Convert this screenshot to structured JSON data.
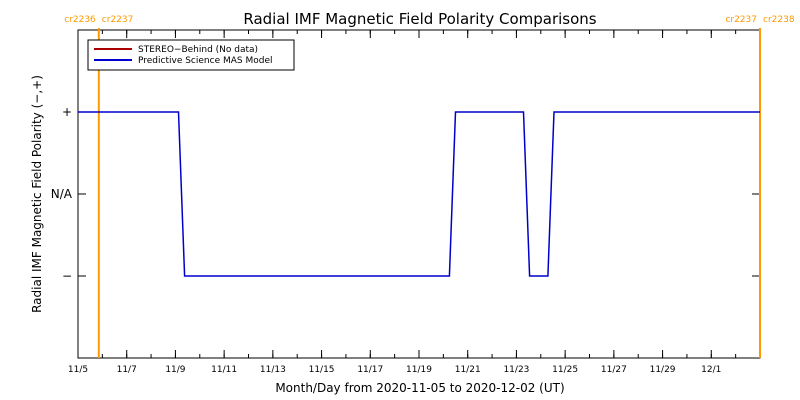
{
  "chart_data": {
    "type": "line",
    "title": "Radial IMF Magnetic Field Polarity Comparisons",
    "xlabel": "Month/Day from 2020-11-05 to 2020-12-02 (UT)",
    "ylabel": "Radial IMF Magnetic Field Polarity (−,+)",
    "x_start": "2020-11-05",
    "x_end": "2020-12-03",
    "x_ticks": [
      {
        "date": "2020-11-05",
        "label": "11/5"
      },
      {
        "date": "2020-11-07",
        "label": "11/7"
      },
      {
        "date": "2020-11-09",
        "label": "11/9"
      },
      {
        "date": "2020-11-11",
        "label": "11/11"
      },
      {
        "date": "2020-11-13",
        "label": "11/13"
      },
      {
        "date": "2020-11-15",
        "label": "11/15"
      },
      {
        "date": "2020-11-17",
        "label": "11/17"
      },
      {
        "date": "2020-11-19",
        "label": "11/19"
      },
      {
        "date": "2020-11-21",
        "label": "11/21"
      },
      {
        "date": "2020-11-23",
        "label": "11/23"
      },
      {
        "date": "2020-11-25",
        "label": "11/25"
      },
      {
        "date": "2020-11-27",
        "label": "11/27"
      },
      {
        "date": "2020-11-29",
        "label": "11/29"
      },
      {
        "date": "2020-12-01",
        "label": "12/1"
      }
    ],
    "y_ticks": [
      {
        "value": 1,
        "label": "+"
      },
      {
        "value": 0,
        "label": "N/A"
      },
      {
        "value": -1,
        "label": "−"
      }
    ],
    "ylim": [
      -2,
      2
    ],
    "legend": {
      "placement": "top-left",
      "entries": [
        {
          "name": "STEREO−Behind (No data)",
          "color": "#aa0000"
        },
        {
          "name": "Predictive Science MAS Model",
          "color": "#0000cc"
        }
      ]
    },
    "carrington_markers": [
      {
        "date": "2020-11-05 20:30",
        "left_label": "cr2236",
        "right_label": "cr2237",
        "color": "#ff9900"
      },
      {
        "date": "2020-12-03 00:00",
        "left_label": "cr2237",
        "right_label": "cr2238",
        "color": "#ff9900"
      }
    ],
    "series": [
      {
        "name": "Predictive Science MAS Model",
        "color": "#0000cc",
        "points": [
          {
            "x": "2020-11-05 00:00",
            "y": 1
          },
          {
            "x": "2020-11-09 03:00",
            "y": 1
          },
          {
            "x": "2020-11-09 09:00",
            "y": -1
          },
          {
            "x": "2020-11-20 06:00",
            "y": -1
          },
          {
            "x": "2020-11-20 12:00",
            "y": 1
          },
          {
            "x": "2020-11-23 07:00",
            "y": 1
          },
          {
            "x": "2020-11-23 13:00",
            "y": -1
          },
          {
            "x": "2020-11-24 07:00",
            "y": -1
          },
          {
            "x": "2020-11-24 13:00",
            "y": 1
          },
          {
            "x": "2020-12-03 00:00",
            "y": 1
          }
        ]
      },
      {
        "name": "STEREO−Behind (No data)",
        "color": "#aa0000",
        "points": []
      }
    ]
  }
}
